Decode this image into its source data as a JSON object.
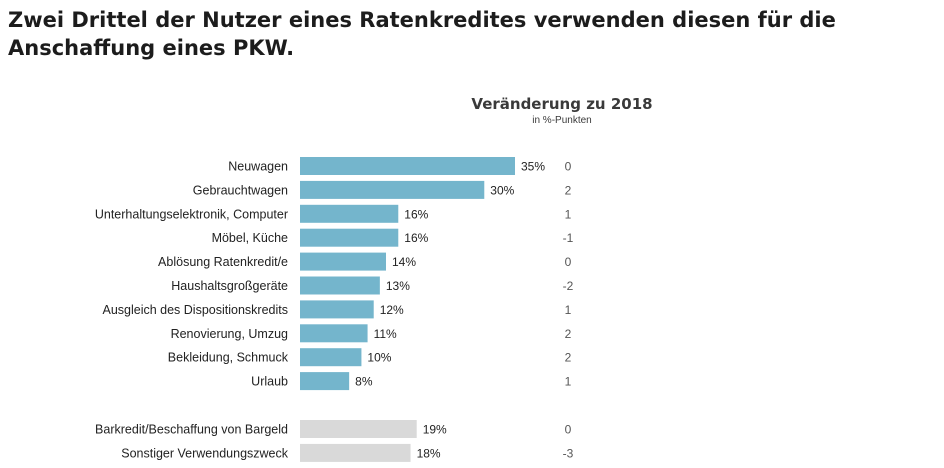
{
  "chart_data": {
    "type": "bar",
    "orientation": "horizontal",
    "title": "Zwei Drittel der Nutzer eines Ratenkredites verwenden diesen für die Anschaffung eines PKW.",
    "change_header": "Veränderung zu 2018",
    "change_unit": "in %-Punkten",
    "xlim": [
      0,
      35
    ],
    "colors": {
      "primary": "#74b5cc",
      "secondary": "#d9d9d9"
    },
    "groups": [
      {
        "color": "primary",
        "categories": [
          "Neuwagen",
          "Gebrauchtwagen",
          "Unterhaltungselektronik, Computer",
          "Möbel, Küche",
          "Ablösung Ratenkredit/e",
          "Haushaltsgroßgeräte",
          "Ausgleich des Dispositionskredits",
          "Renovierung, Umzug",
          "Bekleidung, Schmuck",
          "Urlaub"
        ],
        "values": [
          35,
          30,
          16,
          16,
          14,
          13,
          12,
          11,
          10,
          8
        ],
        "value_labels": [
          "35%",
          "30%",
          "16%",
          "16%",
          "14%",
          "13%",
          "12%",
          "11%",
          "10%",
          "8%"
        ],
        "change": [
          "0",
          "2",
          "1",
          "-1",
          "0",
          "-2",
          "1",
          "2",
          "2",
          "1"
        ]
      },
      {
        "color": "secondary",
        "categories": [
          "Barkredit/Beschaffung von Bargeld",
          "Sonstiger Verwendungszweck"
        ],
        "values": [
          19,
          18
        ],
        "value_labels": [
          "19%",
          "18%"
        ],
        "change": [
          "0",
          "-3"
        ]
      }
    ]
  }
}
